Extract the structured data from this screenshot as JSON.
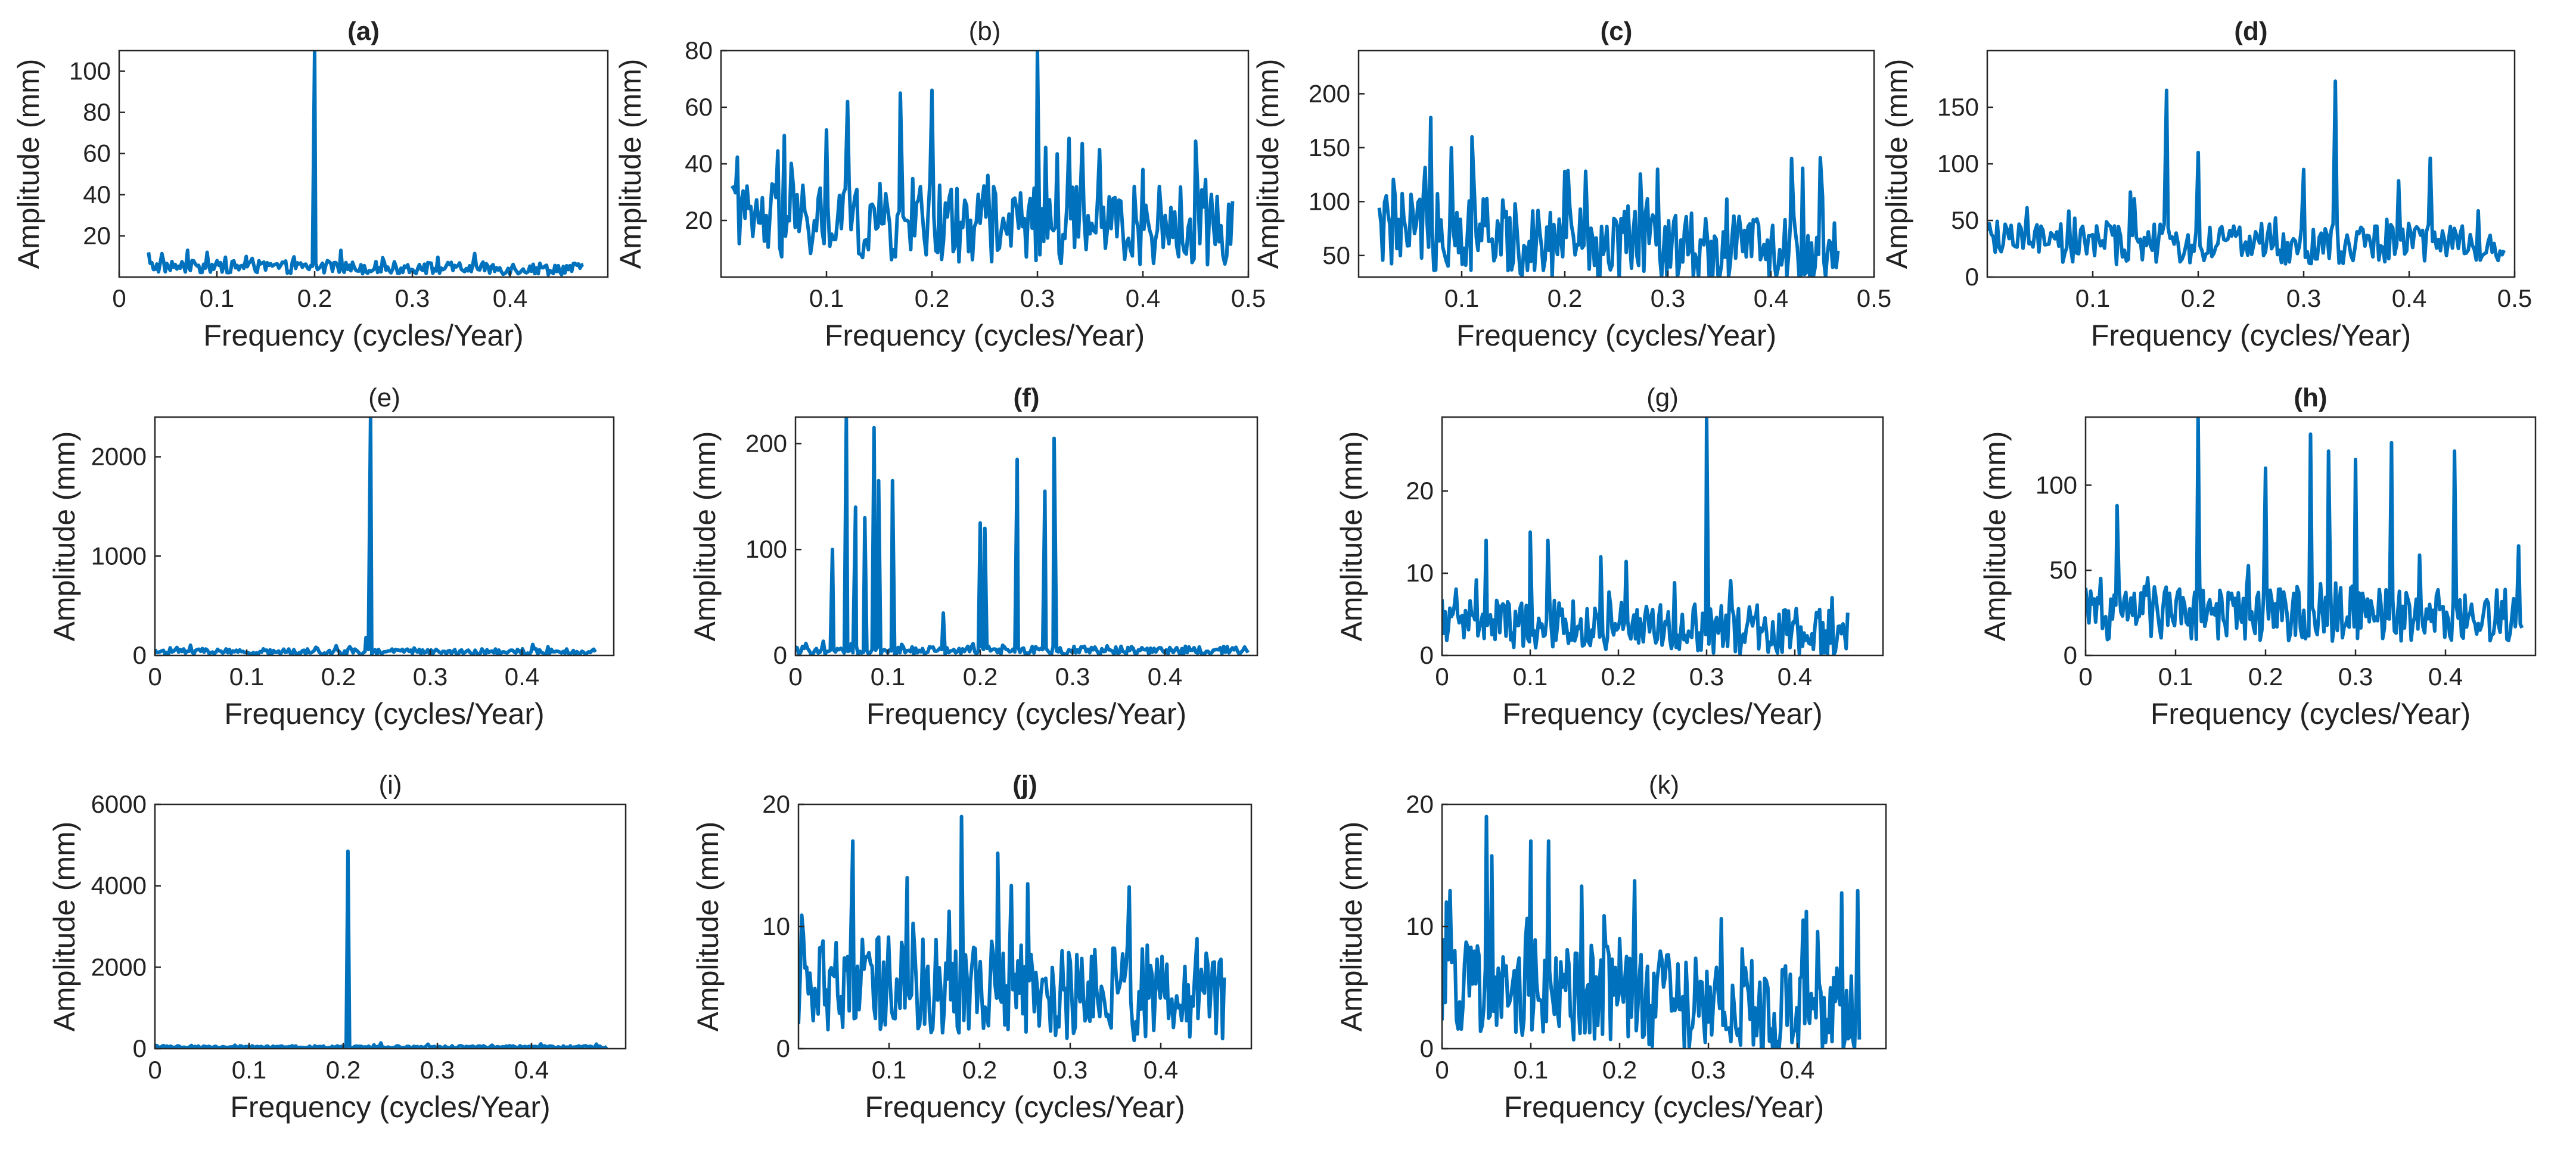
{
  "figure": {
    "series_color": "#0072BD"
  },
  "chart_data": [
    {
      "id": "a",
      "type": "line",
      "title": "(a)",
      "title_bold": true,
      "xlabel": "Frequency (cycles/Year)",
      "ylabel": "Amplitude (mm)",
      "xlim": [
        0,
        0.5
      ],
      "ylim": [
        0,
        110
      ],
      "xticks": [
        0,
        0.1,
        0.2,
        0.3,
        0.4
      ],
      "xticklabels": [
        "0",
        "0.1",
        "0.2",
        "0.3",
        "0.4"
      ],
      "yticks": [
        20,
        40,
        60,
        80,
        100
      ],
      "yticklabels": [
        "20",
        "40",
        "60",
        "80",
        "100"
      ],
      "x_range": [
        0.03,
        0.475
      ],
      "noise_level": 4,
      "noise_var": 3,
      "decay": 0.3,
      "peaks": [
        {
          "x": 0.2,
          "y": 110
        },
        {
          "x": 0.03,
          "y": 12
        },
        {
          "x": 0.07,
          "y": 13
        },
        {
          "x": 0.09,
          "y": 12
        },
        {
          "x": 0.13,
          "y": 10
        },
        {
          "x": 0.22,
          "y": 7
        }
      ]
    },
    {
      "id": "b",
      "type": "line",
      "title": "(b)",
      "title_bold": false,
      "xlabel": "Frequency (cycles/Year)",
      "ylabel": "Amplitude (mm)",
      "xlim": [
        0,
        0.5
      ],
      "ylim": [
        0,
        80
      ],
      "xticks": [
        0.1,
        0.2,
        0.3,
        0.4,
        0.5
      ],
      "xticklabels": [
        "0.1",
        "0.2",
        "0.3",
        "0.4",
        "0.5"
      ],
      "yticks": [
        20,
        40,
        60,
        80
      ],
      "yticklabels": [
        "20",
        "40",
        "60",
        "80"
      ],
      "x_range": [
        0.01,
        0.485
      ],
      "noise_level": 14,
      "noise_var": 14,
      "decay": 0.1,
      "peaks": [
        {
          "x": 0.06,
          "y": 50
        },
        {
          "x": 0.1,
          "y": 52
        },
        {
          "x": 0.12,
          "y": 62
        },
        {
          "x": 0.17,
          "y": 65
        },
        {
          "x": 0.2,
          "y": 66
        },
        {
          "x": 0.3,
          "y": 80
        },
        {
          "x": 0.33,
          "y": 49
        },
        {
          "x": 0.45,
          "y": 48
        },
        {
          "x": 0.4,
          "y": 38
        }
      ]
    },
    {
      "id": "c",
      "type": "line",
      "title": "(c)",
      "title_bold": true,
      "xlabel": "Frequency (cycles/Year)",
      "ylabel": "Amplitude (mm)",
      "xlim": [
        0,
        0.5
      ],
      "ylim": [
        30,
        240
      ],
      "xticks": [
        0.1,
        0.2,
        0.3,
        0.4,
        0.5
      ],
      "xticklabels": [
        "0.1",
        "0.2",
        "0.3",
        "0.4",
        "0.5"
      ],
      "yticks": [
        50,
        100,
        150,
        200
      ],
      "yticklabels": [
        "50",
        "100",
        "150",
        "200"
      ],
      "x_range": [
        0.02,
        0.465
      ],
      "noise_level": 60,
      "noise_var": 35,
      "decay": 0.4,
      "peaks": [
        {
          "x": 0.07,
          "y": 178
        },
        {
          "x": 0.11,
          "y": 160
        },
        {
          "x": 0.09,
          "y": 150
        },
        {
          "x": 0.29,
          "y": 130
        },
        {
          "x": 0.42,
          "y": 140
        },
        {
          "x": 0.45,
          "y": 105
        },
        {
          "x": 0.2,
          "y": 128
        }
      ]
    },
    {
      "id": "d",
      "type": "line",
      "title": "(d)",
      "title_bold": true,
      "xlabel": "Frequency (cycles/Year)",
      "ylabel": "Amplitude (mm)",
      "xlim": [
        0,
        0.5
      ],
      "ylim": [
        0,
        200
      ],
      "xticks": [
        0.1,
        0.2,
        0.3,
        0.4,
        0.5
      ],
      "xticklabels": [
        "0.1",
        "0.2",
        "0.3",
        "0.4",
        "0.5"
      ],
      "yticks": [
        0,
        50,
        100,
        150
      ],
      "yticklabels": [
        "0",
        "50",
        "100",
        "150"
      ],
      "x_range": [
        0.0,
        0.49
      ],
      "noise_level": 22,
      "noise_var": 18,
      "decay": 0.0,
      "peaks": [
        {
          "x": 0.17,
          "y": 165
        },
        {
          "x": 0.33,
          "y": 173
        },
        {
          "x": 0.2,
          "y": 110
        },
        {
          "x": 0.3,
          "y": 95
        },
        {
          "x": 0.42,
          "y": 105
        },
        {
          "x": 0.39,
          "y": 85
        }
      ]
    },
    {
      "id": "e",
      "type": "line",
      "title": "(e)",
      "title_bold": false,
      "xlabel": "Frequency (cycles/Year)",
      "ylabel": "Amplitude (mm)",
      "xlim": [
        0,
        0.5
      ],
      "ylim": [
        0,
        2400
      ],
      "xticks": [
        0,
        0.1,
        0.2,
        0.3,
        0.4
      ],
      "xticklabels": [
        "0",
        "0.1",
        "0.2",
        "0.3",
        "0.4"
      ],
      "yticks": [
        0,
        1000,
        2000
      ],
      "yticklabels": [
        "0",
        "1000",
        "2000"
      ],
      "x_range": [
        0.0,
        0.48
      ],
      "noise_level": 25,
      "noise_var": 30,
      "decay": 0.0,
      "peaks": [
        {
          "x": 0.235,
          "y": 2400
        },
        {
          "x": 0.23,
          "y": 180
        }
      ]
    },
    {
      "id": "f",
      "type": "line",
      "title": "(f)",
      "title_bold": true,
      "xlabel": "Frequency (cycles/Year)",
      "ylabel": "Amplitude (mm)",
      "xlim": [
        0,
        0.5
      ],
      "ylim": [
        0,
        225
      ],
      "xticks": [
        0,
        0.1,
        0.2,
        0.3,
        0.4
      ],
      "xticklabels": [
        "0",
        "0.1",
        "0.2",
        "0.3",
        "0.4"
      ],
      "yticks": [
        0,
        100,
        200
      ],
      "yticklabels": [
        "0",
        "100",
        "200"
      ],
      "x_range": [
        0.0,
        0.49
      ],
      "noise_level": 3,
      "noise_var": 4,
      "decay": 0.0,
      "peaks": [
        {
          "x": 0.04,
          "y": 100
        },
        {
          "x": 0.055,
          "y": 225
        },
        {
          "x": 0.065,
          "y": 140
        },
        {
          "x": 0.075,
          "y": 130
        },
        {
          "x": 0.085,
          "y": 215
        },
        {
          "x": 0.09,
          "y": 165
        },
        {
          "x": 0.105,
          "y": 165
        },
        {
          "x": 0.2,
          "y": 125
        },
        {
          "x": 0.205,
          "y": 120
        },
        {
          "x": 0.24,
          "y": 185
        },
        {
          "x": 0.27,
          "y": 155
        },
        {
          "x": 0.28,
          "y": 205
        },
        {
          "x": 0.16,
          "y": 40
        }
      ]
    },
    {
      "id": "g",
      "type": "line",
      "title": "(g)",
      "title_bold": false,
      "xlabel": "Frequency (cycles/Year)",
      "ylabel": "Amplitude (mm)",
      "xlim": [
        0,
        0.5
      ],
      "ylim": [
        0,
        29
      ],
      "xticks": [
        0,
        0.1,
        0.2,
        0.3,
        0.4
      ],
      "xticklabels": [
        "0",
        "0.1",
        "0.2",
        "0.3",
        "0.4"
      ],
      "yticks": [
        0,
        10,
        20
      ],
      "yticklabels": [
        "0",
        "10",
        "20"
      ],
      "x_range": [
        0.0,
        0.46
      ],
      "noise_level": 3,
      "noise_var": 3,
      "decay": 0.5,
      "peaks": [
        {
          "x": 0.3,
          "y": 29
        },
        {
          "x": 0.05,
          "y": 14
        },
        {
          "x": 0.1,
          "y": 15
        },
        {
          "x": 0.12,
          "y": 14
        },
        {
          "x": 0.18,
          "y": 12
        }
      ]
    },
    {
      "id": "h",
      "type": "line",
      "title": "(h)",
      "title_bold": true,
      "xlabel": "Frequency (cycles/Year)",
      "ylabel": "Amplitude (mm)",
      "xlim": [
        0,
        0.5
      ],
      "ylim": [
        0,
        140
      ],
      "xticks": [
        0,
        0.1,
        0.2,
        0.3,
        0.4
      ],
      "xticklabels": [
        "0",
        "0.1",
        "0.2",
        "0.3",
        "0.4"
      ],
      "yticks": [
        0,
        50,
        100
      ],
      "yticklabels": [
        "0",
        "50",
        "100"
      ],
      "x_range": [
        0.0,
        0.485
      ],
      "noise_level": 18,
      "noise_var": 16,
      "decay": 0.0,
      "peaks": [
        {
          "x": 0.125,
          "y": 140
        },
        {
          "x": 0.035,
          "y": 88
        },
        {
          "x": 0.25,
          "y": 130
        },
        {
          "x": 0.27,
          "y": 120
        },
        {
          "x": 0.34,
          "y": 125
        },
        {
          "x": 0.41,
          "y": 120
        },
        {
          "x": 0.2,
          "y": 110
        },
        {
          "x": 0.3,
          "y": 115
        }
      ]
    },
    {
      "id": "i",
      "type": "line",
      "title": "(i)",
      "title_bold": false,
      "xlabel": "Frequency (cycles/Year)",
      "ylabel": "Amplitude (mm)",
      "xlim": [
        0,
        0.5
      ],
      "ylim": [
        0,
        6000
      ],
      "xticks": [
        0,
        0.1,
        0.2,
        0.3,
        0.4
      ],
      "xticklabels": [
        "0",
        "0.1",
        "0.2",
        "0.3",
        "0.4"
      ],
      "yticks": [
        0,
        2000,
        4000,
        6000
      ],
      "yticklabels": [
        "0",
        "2000",
        "4000",
        "6000"
      ],
      "x_range": [
        0.0,
        0.48
      ],
      "noise_level": 30,
      "noise_var": 30,
      "decay": 0.0,
      "peaks": [
        {
          "x": 0.205,
          "y": 4850
        },
        {
          "x": 0.24,
          "y": 140
        },
        {
          "x": 0.29,
          "y": 110
        }
      ]
    },
    {
      "id": "j",
      "type": "line",
      "title": "(j)",
      "title_bold": true,
      "xlabel": "Frequency (cycles/Year)",
      "ylabel": "Amplitude (mm)",
      "xlim": [
        0,
        0.5
      ],
      "ylim": [
        0,
        20
      ],
      "xticks": [
        0.1,
        0.2,
        0.3,
        0.4
      ],
      "xticklabels": [
        "0.1",
        "0.2",
        "0.3",
        "0.4"
      ],
      "yticks": [
        0,
        10,
        20
      ],
      "yticklabels": [
        "0",
        "10",
        "20"
      ],
      "x_range": [
        0.0,
        0.47
      ],
      "noise_level": 4,
      "noise_var": 4,
      "decay": 0.3,
      "peaks": [
        {
          "x": 0.06,
          "y": 17
        },
        {
          "x": 0.18,
          "y": 19
        },
        {
          "x": 0.12,
          "y": 14
        },
        {
          "x": 0.22,
          "y": 16
        },
        {
          "x": 0.44,
          "y": 9
        }
      ]
    },
    {
      "id": "k",
      "type": "line",
      "title": "(k)",
      "title_bold": false,
      "xlabel": "Frequency (cycles/Year)",
      "ylabel": "Amplitude (mm)",
      "xlim": [
        0,
        0.5
      ],
      "ylim": [
        0,
        20
      ],
      "xticks": [
        0,
        0.1,
        0.2,
        0.3,
        0.4
      ],
      "xticklabels": [
        "0",
        "0.1",
        "0.2",
        "0.3",
        "0.4"
      ],
      "yticks": [
        0,
        10,
        20
      ],
      "yticklabels": [
        "0",
        "10",
        "20"
      ],
      "x_range": [
        0.0,
        0.47
      ],
      "noise_level": 4,
      "noise_var": 4,
      "decay": 0.75,
      "peaks": [
        {
          "x": 0.005,
          "y": 12
        },
        {
          "x": 0.05,
          "y": 19
        },
        {
          "x": 0.1,
          "y": 17
        },
        {
          "x": 0.12,
          "y": 17
        },
        {
          "x": 0.2,
          "y": 9
        }
      ]
    }
  ]
}
